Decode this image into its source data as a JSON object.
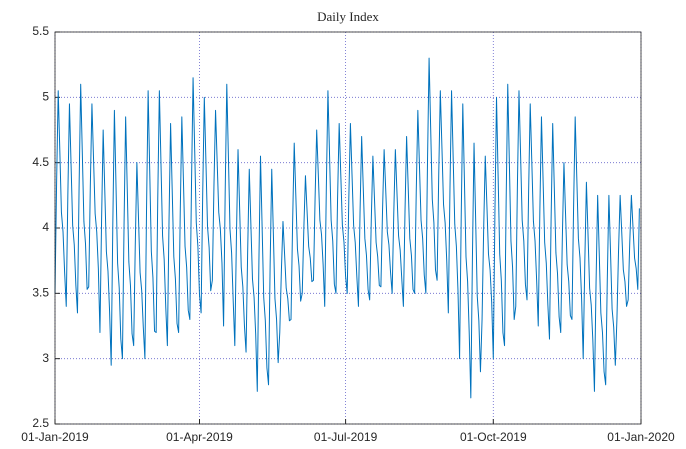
{
  "chart_data": {
    "type": "line",
    "title": "Daily Index",
    "x": [
      0,
      1,
      2,
      3,
      4,
      5,
      6,
      7,
      8,
      9,
      10,
      11,
      12,
      13,
      14,
      15,
      16,
      17,
      18,
      19,
      20,
      21,
      22,
      23,
      24,
      25,
      26,
      27,
      28,
      29,
      30,
      31,
      32,
      33,
      34,
      35,
      36,
      37,
      38,
      39,
      40,
      41,
      42,
      43,
      44,
      45,
      46,
      47,
      48,
      49,
      50,
      51,
      52,
      53,
      54,
      55,
      56,
      57,
      58,
      59,
      60,
      61,
      62,
      63,
      64,
      65,
      66,
      67,
      68,
      69,
      70,
      71,
      72,
      73,
      74,
      75,
      76,
      77,
      78,
      79,
      80,
      81,
      82,
      83,
      84,
      85,
      86,
      87,
      88,
      89,
      90,
      91,
      92,
      93,
      94,
      95,
      96,
      97,
      98,
      99,
      100,
      101,
      102,
      103,
      104,
      105,
      106,
      107,
      108,
      109,
      110,
      111,
      112,
      113,
      114,
      115,
      116,
      117,
      118,
      119,
      120,
      121,
      122,
      123,
      124,
      125,
      126,
      127,
      128,
      129,
      130,
      131,
      132,
      133,
      134,
      135,
      136,
      137,
      138,
      139,
      140,
      141,
      142,
      143,
      144,
      145,
      146,
      147,
      148,
      149,
      150,
      151,
      152,
      153,
      154,
      155,
      156,
      157,
      158,
      159,
      160,
      161,
      162,
      163,
      164,
      165,
      166,
      167,
      168,
      169,
      170,
      171,
      172,
      173,
      174,
      175,
      176,
      177,
      178,
      179,
      180,
      181,
      182,
      183,
      184,
      185,
      186,
      187,
      188,
      189,
      190,
      191,
      192,
      193,
      194,
      195,
      196,
      197,
      198,
      199,
      200,
      201,
      202,
      203,
      204,
      205,
      206,
      207,
      208,
      209,
      210,
      211,
      212,
      213,
      214,
      215,
      216,
      217,
      218,
      219,
      220,
      221,
      222,
      223,
      224,
      225,
      226,
      227,
      228,
      229,
      230,
      231,
      232,
      233,
      234,
      235,
      236,
      237,
      238,
      239,
      240,
      241,
      242,
      243,
      244,
      245,
      246,
      247,
      248,
      249,
      250,
      251,
      252,
      253,
      254,
      255,
      256,
      257,
      258,
      259,
      260,
      261,
      262,
      263,
      264,
      265,
      266,
      267,
      268,
      269,
      270,
      271,
      272,
      273,
      274,
      275,
      276,
      277,
      278,
      279,
      280,
      281,
      282,
      283,
      284,
      285,
      286,
      287,
      288,
      289,
      290,
      291,
      292,
      293,
      294,
      295,
      296,
      297,
      298,
      299,
      300,
      301,
      302,
      303,
      304,
      305,
      306,
      307,
      308,
      309,
      310,
      311,
      312,
      313,
      314,
      315,
      316,
      317,
      318,
      319,
      320,
      321,
      322,
      323,
      324,
      325,
      326,
      327,
      328,
      329,
      330,
      331,
      332,
      333,
      334,
      335,
      336,
      337,
      338,
      339,
      340,
      341,
      342,
      343,
      344,
      345,
      346,
      347,
      348,
      349,
      350,
      351,
      352,
      353,
      354,
      355,
      356,
      357,
      358,
      359,
      360,
      361,
      362,
      363,
      364
    ],
    "series": [
      {
        "color": "#0072bd",
        "values": [
          3.5,
          4.35,
          5.05,
          4.59,
          4.12,
          3.97,
          3.66,
          3.4,
          4.25,
          4.95,
          4.49,
          4.02,
          3.87,
          3.56,
          3.35,
          4.31,
          5.1,
          4.58,
          4.05,
          3.88,
          3.53,
          3.55,
          4.32,
          4.95,
          4.53,
          4.11,
          3.97,
          3.69,
          3.2,
          4.05,
          4.75,
          4.29,
          3.82,
          3.67,
          3.36,
          2.95,
          4.02,
          4.9,
          4.32,
          3.73,
          3.54,
          3.15,
          3.0,
          4.02,
          4.85,
          4.3,
          3.74,
          3.56,
          3.19,
          3.1,
          3.87,
          4.5,
          4.08,
          3.66,
          3.52,
          3.24,
          3.0,
          4.13,
          5.05,
          4.44,
          3.82,
          3.62,
          3.21,
          3.2,
          4.22,
          5.05,
          4.5,
          3.94,
          3.76,
          3.39,
          3.1,
          4.04,
          4.8,
          4.29,
          3.78,
          3.61,
          3.27,
          3.2,
          4.11,
          4.85,
          4.36,
          3.86,
          3.7,
          3.37,
          3.3,
          4.32,
          5.15,
          4.6,
          4.04,
          3.86,
          3.49,
          3.35,
          4.26,
          5.0,
          4.51,
          4.01,
          3.85,
          3.52,
          3.6,
          4.32,
          4.9,
          4.51,
          4.12,
          3.99,
          3.73,
          3.25,
          4.27,
          5.1,
          4.55,
          3.99,
          3.81,
          3.44,
          3.1,
          3.93,
          4.6,
          4.15,
          3.7,
          3.55,
          3.25,
          3.05,
          3.82,
          4.45,
          4.03,
          3.61,
          3.47,
          3.19,
          2.75,
          3.74,
          4.55,
          4.01,
          3.47,
          3.29,
          2.93,
          2.8,
          3.71,
          4.45,
          3.96,
          3.46,
          3.3,
          2.97,
          3.2,
          3.67,
          4.05,
          3.8,
          3.54,
          3.46,
          3.29,
          3.3,
          4.04,
          4.65,
          4.25,
          3.84,
          3.71,
          3.44,
          3.5,
          4.0,
          4.4,
          4.13,
          3.86,
          3.77,
          3.59,
          3.6,
          4.23,
          4.75,
          4.41,
          4.06,
          3.95,
          3.72,
          3.4,
          4.31,
          5.05,
          4.56,
          4.06,
          3.9,
          3.57,
          3.5,
          4.22,
          4.8,
          4.41,
          4.02,
          3.89,
          3.63,
          3.5,
          4.22,
          4.8,
          4.41,
          4.02,
          3.89,
          3.63,
          3.4,
          4.12,
          4.7,
          4.31,
          3.92,
          3.79,
          3.53,
          3.45,
          4.06,
          4.55,
          4.22,
          3.89,
          3.78,
          3.56,
          3.55,
          4.13,
          4.6,
          4.29,
          3.97,
          3.87,
          3.66,
          3.5,
          4.11,
          4.6,
          4.27,
          3.94,
          3.83,
          3.61,
          3.4,
          4.12,
          4.7,
          4.31,
          3.92,
          3.79,
          3.53,
          3.5,
          4.27,
          4.9,
          4.48,
          4.06,
          3.92,
          3.64,
          3.5,
          4.49,
          5.3,
          4.76,
          4.22,
          4.04,
          3.68,
          3.6,
          4.4,
          5.05,
          4.62,
          4.18,
          4.04,
          3.75,
          3.35,
          4.29,
          5.05,
          4.54,
          4.03,
          3.86,
          3.52,
          3.0,
          4.07,
          4.95,
          4.37,
          3.78,
          3.59,
          3.2,
          2.7,
          3.77,
          4.65,
          4.07,
          3.48,
          3.29,
          2.9,
          3.3,
          3.99,
          4.55,
          4.18,
          3.8,
          3.68,
          3.43,
          3.0,
          4.1,
          5.0,
          4.4,
          3.8,
          3.6,
          3.2,
          3.1,
          4.2,
          5.1,
          4.5,
          3.9,
          3.7,
          3.3,
          3.4,
          4.31,
          5.05,
          4.56,
          4.06,
          3.9,
          3.57,
          3.45,
          4.28,
          4.95,
          4.5,
          4.05,
          3.9,
          3.6,
          3.25,
          4.13,
          4.85,
          4.37,
          3.89,
          3.73,
          3.41,
          3.15,
          4.06,
          4.8,
          4.31,
          3.81,
          3.65,
          3.32,
          3.2,
          3.92,
          4.5,
          4.11,
          3.72,
          3.59,
          3.33,
          3.3,
          4.15,
          4.85,
          4.39,
          3.92,
          3.77,
          3.46,
          3.0,
          3.74,
          4.35,
          3.95,
          3.54,
          3.41,
          3.14,
          2.75,
          3.58,
          4.25,
          3.8,
          3.35,
          3.2,
          2.9,
          2.8,
          3.6,
          4.25,
          3.82,
          3.38,
          3.24,
          2.95,
          3.3,
          3.82,
          4.25,
          3.97,
          3.68,
          3.59,
          3.4,
          3.45,
          3.89,
          4.25,
          4.01,
          3.77,
          3.69,
          3.53,
          4.15
        ]
      }
    ],
    "xlim": [
      0,
      365
    ],
    "xticks": [
      {
        "value": 0,
        "label": "01-Jan-2019"
      },
      {
        "value": 90,
        "label": "01-Apr-2019"
      },
      {
        "value": 181,
        "label": "01-Jul-2019"
      },
      {
        "value": 273,
        "label": "01-Oct-2019"
      },
      {
        "value": 365,
        "label": "01-Jan-2020"
      }
    ],
    "ylim": [
      2.5,
      5.5
    ],
    "yticks": [
      2.5,
      3,
      3.5,
      4,
      4.5,
      5,
      5.5
    ],
    "grid": true,
    "grid_color": "#6666cc"
  }
}
